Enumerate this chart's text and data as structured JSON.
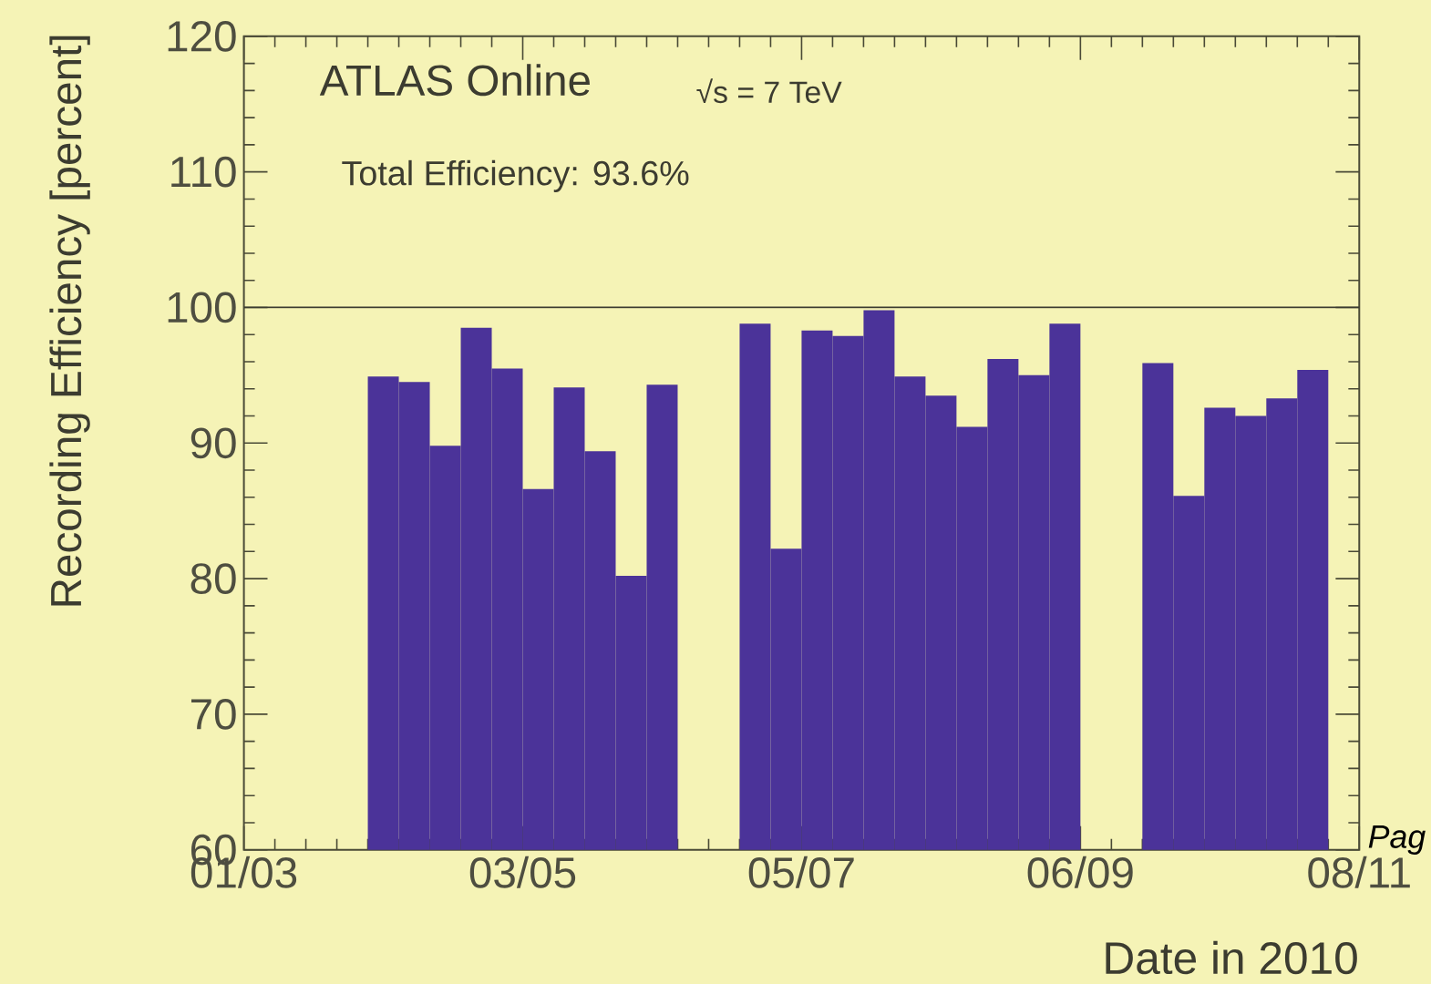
{
  "chart_data": {
    "type": "bar",
    "title": "ATLAS Online",
    "xlabel": "Date in 2010",
    "ylabel": "Recording Efficiency [percent]",
    "annotations": [
      "√s = 7 TeV",
      "Total Efficiency: 93.6%",
      "Pag"
    ],
    "x": [
      "2010-04-01T12:00",
      "2010-04-08T12:00",
      "2010-04-15T12:00",
      "2010-04-22T12:00",
      "2010-04-29T12:00",
      "2010-05-06T12:00",
      "2010-05-13T12:00",
      "2010-05-20T12:00",
      "2010-05-27T12:00",
      "2010-06-03T12:00",
      "2010-06-24T12:00",
      "2010-07-01T12:00",
      "2010-07-08T12:00",
      "2010-07-15T12:00",
      "2010-07-22T12:00",
      "2010-07-29T12:00",
      "2010-08-05T12:00",
      "2010-08-12T12:00",
      "2010-08-19T12:00",
      "2010-08-26T12:00",
      "2010-09-02T12:00",
      "2010-09-23T12:00",
      "2010-09-30T12:00",
      "2010-10-07T12:00",
      "2010-10-14T12:00",
      "2010-10-21T12:00",
      "2010-10-28T12:00"
    ],
    "values": [
      94.9,
      94.5,
      89.8,
      98.5,
      95.5,
      86.6,
      94.1,
      89.4,
      80.2,
      94.3,
      98.8,
      82.2,
      98.3,
      97.9,
      99.8,
      94.9,
      93.5,
      91.2,
      96.2,
      95,
      98.8,
      95.9,
      86.1,
      92.6,
      92.0,
      93.3,
      95.4
    ],
    "color": "#4b3399",
    "xlim": [
      "2010-03-01",
      "2010-11-08"
    ],
    "xticks": [
      {
        "value": "2010-03-01",
        "label": "01/03"
      },
      {
        "value": "2010-05-03",
        "label": "03/05"
      },
      {
        "value": "2010-07-05",
        "label": "05/07"
      },
      {
        "value": "2010-09-06",
        "label": "06/09"
      },
      {
        "value": "2010-11-08",
        "label": "08/11"
      }
    ],
    "ylim": [
      60,
      120
    ],
    "yticks": [
      60,
      70,
      80,
      90,
      100,
      110,
      120
    ],
    "ref_lines": [
      {
        "axis": "y",
        "value": 100,
        "color": "#3c3c30"
      }
    ]
  }
}
